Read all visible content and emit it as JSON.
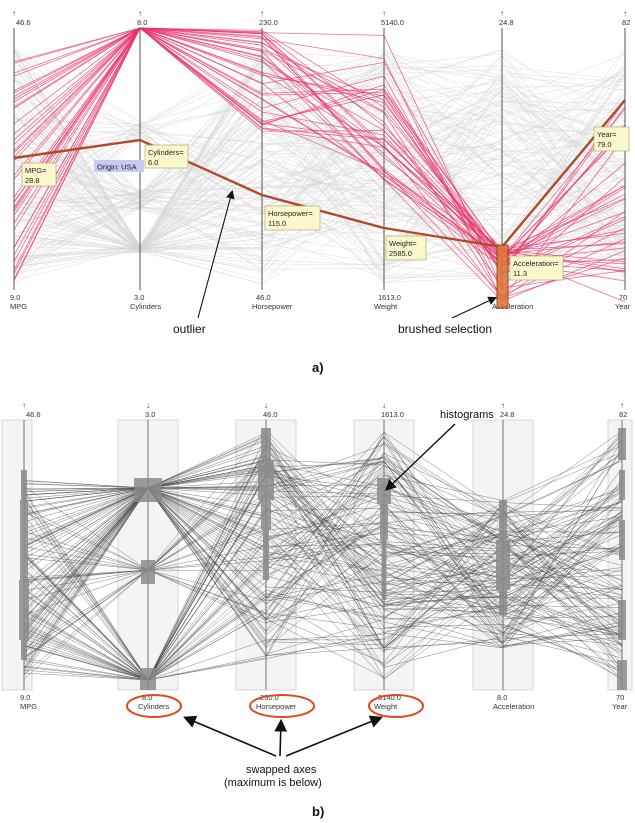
{
  "colors": {
    "background_line": "#d4d4d4",
    "selected_line": "#e8326a",
    "highlight_line": "#b24a2a",
    "brush": "#e0763a",
    "tooltip_bg": "#fbf7cc",
    "origin_bg": "#c9c9f2",
    "histogram": "#8a8a8a",
    "swap_ring": "#e04a1e",
    "panel_b_line": "#444444"
  },
  "panel_a": {
    "label": "a)",
    "axes": [
      {
        "name": "MPG",
        "top": "46.6",
        "bottom": "9.0",
        "arrow": "↑"
      },
      {
        "name": "Cylinders",
        "top": "8.0",
        "bottom": "3.0",
        "arrow": "↑"
      },
      {
        "name": "Horsepower",
        "top": "230.0",
        "bottom": "46.0",
        "arrow": "↑"
      },
      {
        "name": "Weight",
        "top": "5140.0",
        "bottom": "1613.0",
        "arrow": "↑"
      },
      {
        "name": "Acceleration",
        "top": "24.8",
        "bottom": "8.0",
        "arrow": "↑"
      },
      {
        "name": "Year",
        "top": "82",
        "bottom": "70",
        "arrow": "↑"
      }
    ],
    "tooltips": [
      {
        "line1": "MPG=",
        "line2": "28.8"
      },
      {
        "line1": "Cylinders=",
        "line2": "6.0"
      },
      {
        "line1": "Horsepower=",
        "line2": "115.0"
      },
      {
        "line1": "Weight=",
        "line2": "2585.0"
      },
      {
        "line1": "Acceleration=",
        "line2": "11.3"
      },
      {
        "line1": "Year=",
        "line2": "79.0"
      }
    ],
    "origin_label": "Origin: USA",
    "outlier_label": "outlier",
    "brush_label": "brushed selection"
  },
  "panel_b": {
    "label": "b)",
    "axes": [
      {
        "name": "MPG",
        "top": "46.6",
        "bottom": "9.0",
        "arrow": "↑"
      },
      {
        "name": "Cylinders",
        "top": "3.0",
        "bottom": "8.0",
        "arrow": "↓"
      },
      {
        "name": "Horsepower",
        "top": "46.0",
        "bottom": "230.0",
        "arrow": "↓"
      },
      {
        "name": "Weight",
        "top": "1613.0",
        "bottom": "5140.0",
        "arrow": "↓"
      },
      {
        "name": "Acceleration",
        "top": "24.8",
        "bottom": "8.0",
        "arrow": "↑"
      },
      {
        "name": "Year",
        "top": "82",
        "bottom": "70",
        "arrow": "↑"
      }
    ],
    "histograms_label": "histograms",
    "swapped_label_1": "swapped axes",
    "swapped_label_2": "(maximum is below)"
  }
}
